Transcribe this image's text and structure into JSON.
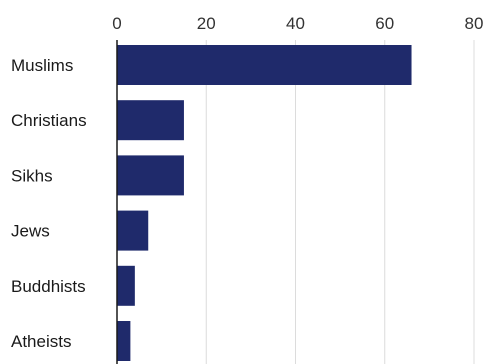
{
  "chart_data": {
    "type": "bar",
    "orientation": "horizontal",
    "categories": [
      "Muslims",
      "Christians",
      "Sikhs",
      "Jews",
      "Buddhists",
      "Atheists"
    ],
    "values": [
      66,
      15,
      15,
      7,
      4,
      3
    ],
    "xlim": [
      0,
      80
    ],
    "xticks": [
      "0",
      "20",
      "40",
      "60",
      "80"
    ],
    "grid": true,
    "bar_color": "#1f2a6b",
    "title": "",
    "xlabel": "",
    "ylabel": ""
  }
}
